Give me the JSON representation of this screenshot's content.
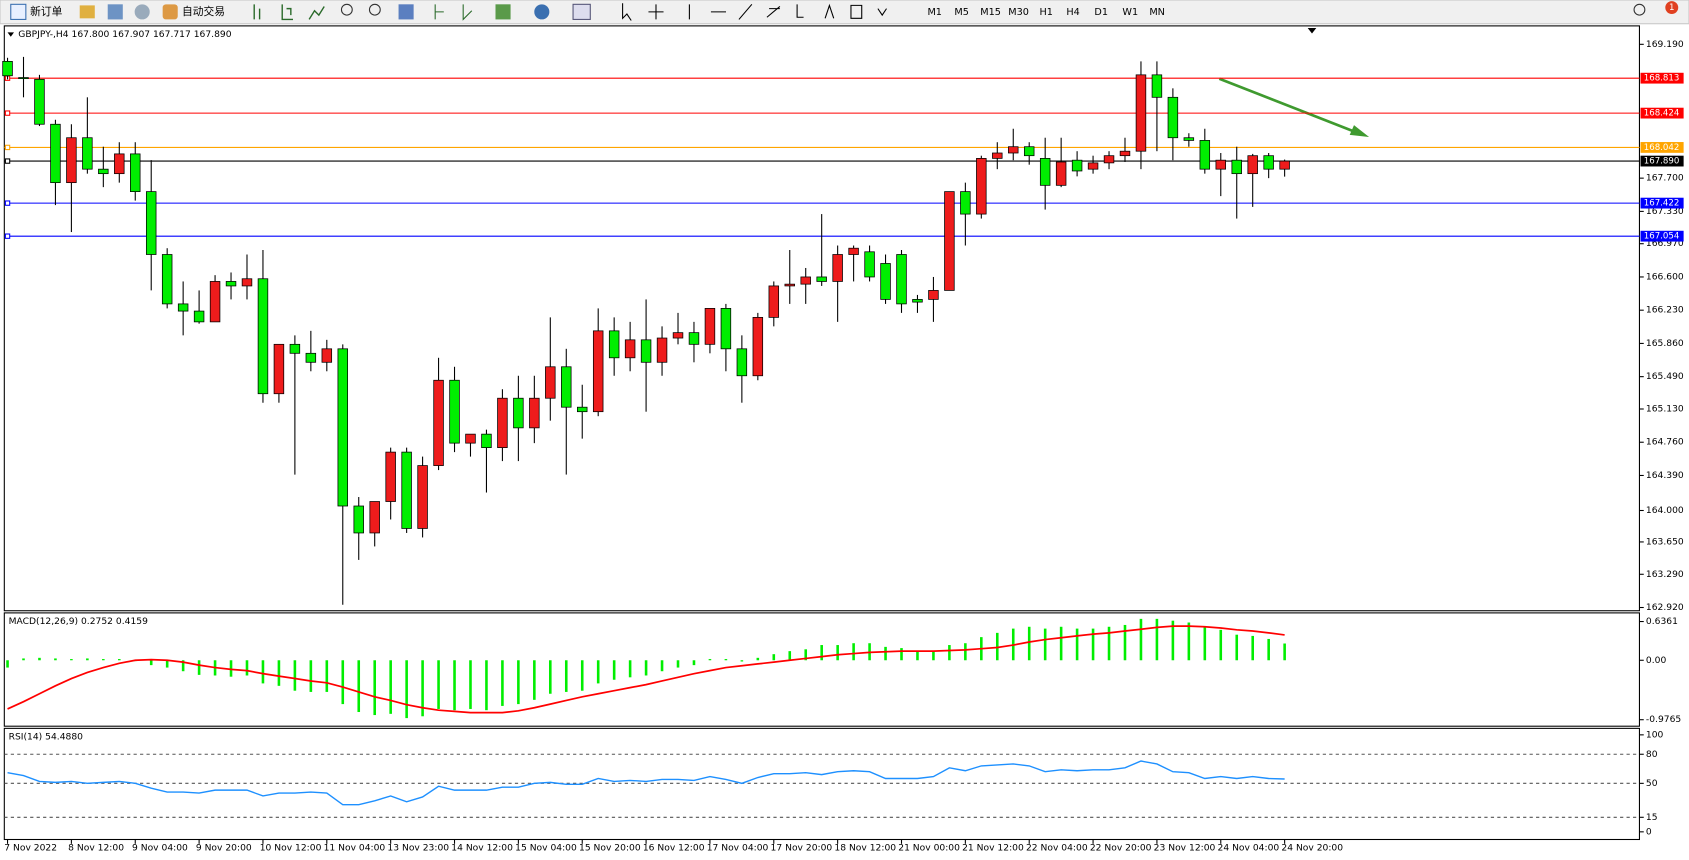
{
  "toolbar": {
    "new_order": "新订单",
    "auto_trading": "自动交易",
    "timeframes": [
      "M1",
      "M5",
      "M15",
      "M30",
      "H1",
      "H4",
      "D1",
      "W1",
      "MN"
    ],
    "notifications": "1"
  },
  "chart_data": [
    {
      "type": "candlestick",
      "title": "GBPJPY-,H4 167.800 167.907 167.717 167.890",
      "categories": [
        "7 Nov 2022",
        null,
        null,
        null,
        "8 Nov 12:00",
        null,
        null,
        null,
        "9 Nov 04:00",
        null,
        null,
        null,
        "9 Nov 20:00",
        null,
        null,
        null,
        "10 Nov 12:00",
        null,
        null,
        null,
        "11 Nov 04:00",
        null,
        null,
        null,
        "13 Nov 23:00",
        null,
        null,
        null,
        "14 Nov 12:00",
        null,
        null,
        null,
        "15 Nov 04:00",
        null,
        null,
        null,
        "15 Nov 20:00",
        null,
        null,
        null,
        "16 Nov 12:00",
        null,
        null,
        null,
        "17 Nov 04:00",
        null,
        null,
        null,
        "17 Nov 20:00",
        null,
        null,
        null,
        "18 Nov 12:00",
        null,
        null,
        null,
        "21 Nov 00:00",
        null,
        null,
        null,
        "21 Nov 12:00",
        null,
        null,
        null,
        "22 Nov 04:00",
        null,
        null,
        null,
        "22 Nov 20:00",
        null,
        null,
        null,
        "23 Nov 12:00",
        null,
        null,
        null,
        "24 Nov 04:00",
        null,
        null,
        null,
        "24 Nov 20:00"
      ],
      "open": [
        169.0,
        168.82,
        168.8,
        168.3,
        167.65,
        168.15,
        167.8,
        167.75,
        167.97,
        167.55,
        166.85,
        166.3,
        166.22,
        166.1,
        166.55,
        166.5,
        166.58,
        165.3,
        165.85,
        165.75,
        165.65,
        165.8,
        164.05,
        163.75,
        164.1,
        164.65,
        163.8,
        164.5,
        165.45,
        164.75,
        164.85,
        164.7,
        165.25,
        164.92,
        165.25,
        165.6,
        165.15,
        165.1,
        166.0,
        165.7,
        165.9,
        165.65,
        165.92,
        165.98,
        165.85,
        166.25,
        165.8,
        165.5,
        166.15,
        166.5,
        166.52,
        166.6,
        166.55,
        166.85,
        166.88,
        166.75,
        166.85,
        166.35,
        166.35,
        166.45,
        167.55,
        167.3,
        167.92,
        167.98,
        168.05,
        167.92,
        167.62,
        167.9,
        167.8,
        167.87,
        167.95,
        168.0,
        168.85,
        168.6,
        168.15,
        168.12,
        167.8,
        167.9,
        167.75,
        167.95,
        167.8
      ],
      "high": [
        169.04,
        169.05,
        168.85,
        168.35,
        168.3,
        168.6,
        168.05,
        168.1,
        168.1,
        167.9,
        166.92,
        166.55,
        166.45,
        166.62,
        166.65,
        166.85,
        166.9,
        165.85,
        165.95,
        166.0,
        165.9,
        165.85,
        164.15,
        164.1,
        164.7,
        164.7,
        164.6,
        165.7,
        165.6,
        164.85,
        164.9,
        165.35,
        165.5,
        165.5,
        166.15,
        165.8,
        165.4,
        166.25,
        166.15,
        166.1,
        166.35,
        166.05,
        166.2,
        166.1,
        166.25,
        166.3,
        165.95,
        166.2,
        166.55,
        166.9,
        166.7,
        167.3,
        166.95,
        166.95,
        166.95,
        166.85,
        166.9,
        166.4,
        166.6,
        167.55,
        167.65,
        167.95,
        168.1,
        168.25,
        168.1,
        168.15,
        168.15,
        168.0,
        167.95,
        168.0,
        168.15,
        169.0,
        169.0,
        168.7,
        168.2,
        168.25,
        167.98,
        168.05,
        167.97,
        167.98,
        167.907
      ],
      "low": [
        168.8,
        168.6,
        168.28,
        167.4,
        167.1,
        167.75,
        167.6,
        167.65,
        167.45,
        166.45,
        166.25,
        165.95,
        166.08,
        166.1,
        166.35,
        166.35,
        165.2,
        165.2,
        164.4,
        165.55,
        165.55,
        162.95,
        163.45,
        163.6,
        163.9,
        163.75,
        163.7,
        164.45,
        164.65,
        164.6,
        164.2,
        164.55,
        164.55,
        164.75,
        165.0,
        164.4,
        164.8,
        165.05,
        165.5,
        165.55,
        165.1,
        165.5,
        165.85,
        165.65,
        165.75,
        165.55,
        165.2,
        165.45,
        166.05,
        166.3,
        166.3,
        166.5,
        166.1,
        166.55,
        166.55,
        166.3,
        166.2,
        166.2,
        166.1,
        166.45,
        166.95,
        167.25,
        167.8,
        167.9,
        167.85,
        167.35,
        167.6,
        167.72,
        167.75,
        167.8,
        167.88,
        167.8,
        168.0,
        167.9,
        168.05,
        167.75,
        167.5,
        167.25,
        167.38,
        167.7,
        167.717
      ],
      "close": [
        168.84,
        168.81,
        168.3,
        167.65,
        168.15,
        167.8,
        167.75,
        167.97,
        167.55,
        166.85,
        166.3,
        166.22,
        166.1,
        166.55,
        166.5,
        166.58,
        165.3,
        165.85,
        165.75,
        165.65,
        165.8,
        164.05,
        163.75,
        164.1,
        164.65,
        163.8,
        164.5,
        165.45,
        164.75,
        164.85,
        164.7,
        165.25,
        164.92,
        165.25,
        165.6,
        165.15,
        165.1,
        166.0,
        165.7,
        165.9,
        165.65,
        165.92,
        165.98,
        165.85,
        166.25,
        165.8,
        165.5,
        166.15,
        166.5,
        166.52,
        166.6,
        166.55,
        166.85,
        166.92,
        166.6,
        166.35,
        166.3,
        166.32,
        166.45,
        167.55,
        167.3,
        167.92,
        167.98,
        168.05,
        167.95,
        167.62,
        167.88,
        167.78,
        167.87,
        167.95,
        168.0,
        168.85,
        168.6,
        168.15,
        168.12,
        167.8,
        167.9,
        167.75,
        167.95,
        167.8,
        167.89
      ],
      "up_color": "#ee1c1c",
      "down_color": "#00ee00",
      "ylim": [
        162.884,
        169.395
      ],
      "yticks": [
        {
          "value": 169.19,
          "label": "169.190"
        },
        {
          "value": 167.7,
          "label": "167.700"
        },
        {
          "value": 167.33,
          "label": "167.330"
        },
        {
          "value": 166.97,
          "label": "166.970"
        },
        {
          "value": 166.6,
          "label": "166.600"
        },
        {
          "value": 166.23,
          "label": "166.230"
        },
        {
          "value": 165.86,
          "label": "165.860"
        },
        {
          "value": 165.49,
          "label": "165.490"
        },
        {
          "value": 165.13,
          "label": "165.130"
        },
        {
          "value": 164.76,
          "label": "164.760"
        },
        {
          "value": 164.39,
          "label": "164.390"
        },
        {
          "value": 164,
          "label": "164.000"
        },
        {
          "value": 163.65,
          "label": "163.650"
        },
        {
          "value": 163.29,
          "label": "163.290"
        },
        {
          "value": 162.92,
          "label": "162.920"
        }
      ],
      "hlines": [
        {
          "value": 168.813,
          "label": "168.813",
          "color": "#ff0000"
        },
        {
          "value": 168.424,
          "label": "168.424",
          "color": "#ff0000"
        },
        {
          "value": 168.042,
          "label": "168.042",
          "color": "#ffa500"
        },
        {
          "value": 167.89,
          "label": "167.890",
          "color": "#000000"
        },
        {
          "value": 167.422,
          "label": "167.422",
          "color": "#0000ff"
        },
        {
          "value": 167.054,
          "label": "167.054",
          "color": "#0000ff"
        }
      ]
    },
    {
      "type": "macd",
      "title": "MACD(12,26,9) 0.2752 0.4159",
      "series": [
        {
          "kind": "bar",
          "color": "#00ee00",
          "values": [
            -0.12,
            0.03,
            0.04,
            0.03,
            0.02,
            0.03,
            0.02,
            0.02,
            0.0,
            -0.08,
            -0.12,
            -0.18,
            -0.24,
            -0.25,
            -0.27,
            -0.25,
            -0.38,
            -0.42,
            -0.5,
            -0.52,
            -0.52,
            -0.72,
            -0.85,
            -0.9,
            -0.88,
            -0.95,
            -0.92,
            -0.8,
            -0.82,
            -0.8,
            -0.82,
            -0.75,
            -0.72,
            -0.65,
            -0.55,
            -0.52,
            -0.5,
            -0.38,
            -0.32,
            -0.28,
            -0.25,
            -0.18,
            -0.12,
            -0.08,
            0.02,
            0.02,
            -0.02,
            0.04,
            0.1,
            0.15,
            0.18,
            0.25,
            0.25,
            0.28,
            0.28,
            0.22,
            0.2,
            0.16,
            0.15,
            0.25,
            0.28,
            0.38,
            0.45,
            0.52,
            0.55,
            0.52,
            0.55,
            0.52,
            0.52,
            0.55,
            0.58,
            0.68,
            0.68,
            0.65,
            0.62,
            0.55,
            0.5,
            0.42,
            0.4,
            0.35,
            0.2752
          ]
        },
        {
          "kind": "line",
          "color": "#ff0000",
          "values": [
            -0.8,
            -0.68,
            -0.55,
            -0.42,
            -0.3,
            -0.2,
            -0.12,
            -0.05,
            0.0,
            0.01,
            0.0,
            -0.03,
            -0.08,
            -0.12,
            -0.15,
            -0.17,
            -0.22,
            -0.26,
            -0.3,
            -0.34,
            -0.37,
            -0.44,
            -0.52,
            -0.6,
            -0.66,
            -0.73,
            -0.78,
            -0.82,
            -0.84,
            -0.86,
            -0.86,
            -0.86,
            -0.83,
            -0.78,
            -0.72,
            -0.66,
            -0.6,
            -0.55,
            -0.5,
            -0.45,
            -0.4,
            -0.34,
            -0.28,
            -0.22,
            -0.17,
            -0.12,
            -0.09,
            -0.06,
            -0.03,
            0.0,
            0.03,
            0.06,
            0.09,
            0.11,
            0.13,
            0.14,
            0.15,
            0.15,
            0.15,
            0.16,
            0.17,
            0.19,
            0.21,
            0.25,
            0.3,
            0.34,
            0.37,
            0.4,
            0.43,
            0.45,
            0.48,
            0.51,
            0.54,
            0.56,
            0.56,
            0.55,
            0.53,
            0.5,
            0.48,
            0.45,
            0.4159
          ]
        }
      ],
      "ylim": [
        -1.083,
        0.778
      ],
      "yticks": [
        0.6361,
        {
          "value": 0,
          "label": "0.00"
        },
        -0.9765
      ]
    },
    {
      "type": "line",
      "title": "RSI(14) 54.4880",
      "series": [
        {
          "color": "#1e90ff",
          "values": [
            61,
            58,
            52,
            51,
            52,
            50,
            51,
            52,
            50,
            45,
            41,
            41,
            40,
            43,
            43,
            43,
            37,
            40,
            40,
            41,
            40,
            28,
            28,
            32,
            37,
            31,
            36,
            47,
            43,
            43,
            43,
            46,
            46,
            50,
            51,
            49,
            49,
            55,
            52,
            53,
            52,
            54,
            54,
            53,
            57,
            54,
            50,
            56,
            60,
            60,
            61,
            59,
            62,
            63,
            62,
            55,
            55,
            55,
            57,
            66,
            63,
            68,
            69,
            70,
            68,
            62,
            64,
            63,
            64,
            64,
            66,
            73,
            70,
            62,
            61,
            55,
            57,
            55,
            57,
            55,
            54.488
          ]
        }
      ],
      "ylim": [
        -7.9,
        106.7
      ],
      "yticks": [
        100,
        80,
        50,
        15,
        0
      ],
      "levels": [
        80,
        50,
        15
      ]
    }
  ]
}
